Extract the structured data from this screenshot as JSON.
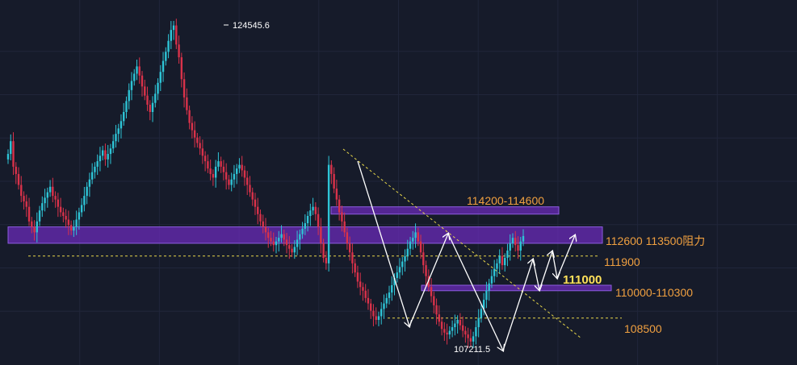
{
  "chart_data": {
    "type": "candlestick",
    "title": "",
    "xlabel": "",
    "ylabel": "",
    "ylim": [
      106500,
      125500
    ],
    "grid": true,
    "colors": {
      "up": "#2ec4d6",
      "down": "#d9324a",
      "background": "#161b2a",
      "zone": "#6a2bb8",
      "dashed": "#e8d84a",
      "label": "#f0a040",
      "highlight": "#ffe15a",
      "arrows": "#ffffff"
    },
    "annotations": {
      "high": {
        "text": "124545.6",
        "value": 124545.6
      },
      "low": {
        "text": "107211.5",
        "value": 107211.5
      }
    },
    "zones": [
      {
        "label": "114200-114600",
        "from": 114200,
        "to": 114600
      },
      {
        "label": "112600 113500阻力",
        "from": 112600,
        "to": 113500
      },
      {
        "label": "110000-110300",
        "from": 110000,
        "to": 110300
      }
    ],
    "levels": [
      {
        "label": "111900",
        "value": 111900
      },
      {
        "label": "111000",
        "value": 111000
      },
      {
        "label": "108500",
        "value": 108500
      }
    ],
    "series": [
      {
        "values": [
          117500,
          118200,
          116800,
          116400,
          115800,
          115200,
          114900,
          114600,
          113800,
          113500,
          113200,
          113800,
          114400,
          114800,
          115100,
          115400,
          115700,
          115200,
          115000,
          114600,
          114300,
          114100,
          113900,
          113600,
          113300,
          113500,
          113900,
          114300,
          114700,
          115200,
          115700,
          116100,
          116500,
          116800,
          117100,
          117400,
          117700,
          117200,
          117500,
          117800,
          118200,
          118600,
          118900,
          119300,
          119800,
          120400,
          121000,
          121500,
          121900,
          122300,
          121800,
          121200,
          120700,
          120200,
          119800,
          120300,
          120800,
          121400,
          122000,
          122600,
          123100,
          123700,
          124300,
          124545.6,
          123500,
          122800,
          121600,
          120600,
          119900,
          119200,
          118800,
          118400,
          118100,
          117800,
          117400,
          117100,
          116700,
          116400,
          116200,
          116800,
          117100,
          116800,
          116500,
          116100,
          115800,
          116100,
          116400,
          116700,
          116900,
          116600,
          116200,
          115800,
          115400,
          115000,
          114600,
          114200,
          113800,
          113500,
          113200,
          112900,
          112700,
          112500,
          112700,
          112900,
          113100,
          112800,
          112500,
          112300,
          112100,
          112400,
          112800,
          113100,
          113400,
          113700,
          114100,
          114400,
          114600,
          114200,
          113500,
          112600,
          111800,
          111500,
          116900,
          116400,
          115600,
          115000,
          114300,
          113800,
          113200,
          112600,
          112100,
          111500,
          111000,
          110500,
          110200,
          110000,
          109600,
          109300,
          108900,
          108600,
          108400,
          108600,
          109000,
          109300,
          109600,
          109900,
          110300,
          110700,
          111000,
          111300,
          111600,
          111900,
          112300,
          112700,
          112900,
          113200,
          112700,
          112100,
          111400,
          110800,
          110200,
          109700,
          109200,
          108700,
          108300,
          107900,
          107700,
          107600,
          107800,
          108000,
          108200,
          108400,
          108100,
          107800,
          107600,
          107400,
          107211.5,
          107500,
          108000,
          108500,
          109000,
          109500,
          110000,
          110400,
          110800,
          111200,
          111500,
          111900,
          111400,
          111800,
          112200,
          112600,
          112900,
          112500,
          112200,
          112700,
          113000
        ]
      }
    ]
  }
}
